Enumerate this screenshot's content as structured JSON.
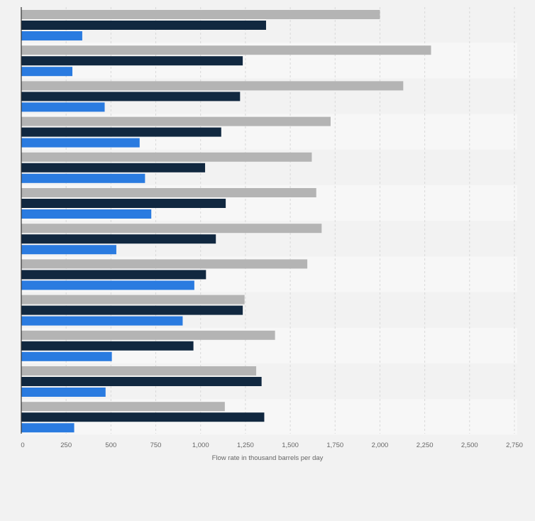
{
  "chart_data": {
    "type": "bar",
    "orientation": "horizontal",
    "categories": [
      "",
      "",
      "",
      "",
      "",
      "",
      "",
      "",
      "",
      "",
      "",
      ""
    ],
    "series": [
      {
        "color": "#b4b4b4",
        "values": [
          2000,
          2285,
          2130,
          1725,
          1620,
          1645,
          1675,
          1595,
          1245,
          1415,
          1310,
          1135
        ]
      },
      {
        "color": "#112840",
        "values": [
          1365,
          1235,
          1220,
          1115,
          1025,
          1140,
          1085,
          1030,
          1235,
          960,
          1340,
          1355
        ]
      },
      {
        "color": "#2a7be0",
        "values": [
          340,
          285,
          465,
          660,
          690,
          725,
          530,
          965,
          900,
          505,
          470,
          295
        ]
      }
    ],
    "xlim": [
      0,
      2750
    ],
    "xticks": [
      0,
      250,
      500,
      750,
      1000,
      1250,
      1500,
      1750,
      2000,
      2250,
      2500,
      2750
    ],
    "xtick_labels": [
      "0",
      "250",
      "500",
      "750",
      "1,000",
      "1,250",
      "1,500",
      "1,750",
      "2,000",
      "2,250",
      "2,500",
      "2,750"
    ],
    "xlabel": "Flow rate in thousand barrels per day",
    "ylabel": "",
    "title": "",
    "grid": "vertical dashed",
    "legend": "none",
    "colors": {
      "background": "#f2f2f2",
      "plot_band_light": "#f7f7f7",
      "plot_band_dark": "#f2f2f2",
      "grid": "#d8d8d8",
      "axis": "#333333",
      "tick_text": "#666666"
    }
  }
}
